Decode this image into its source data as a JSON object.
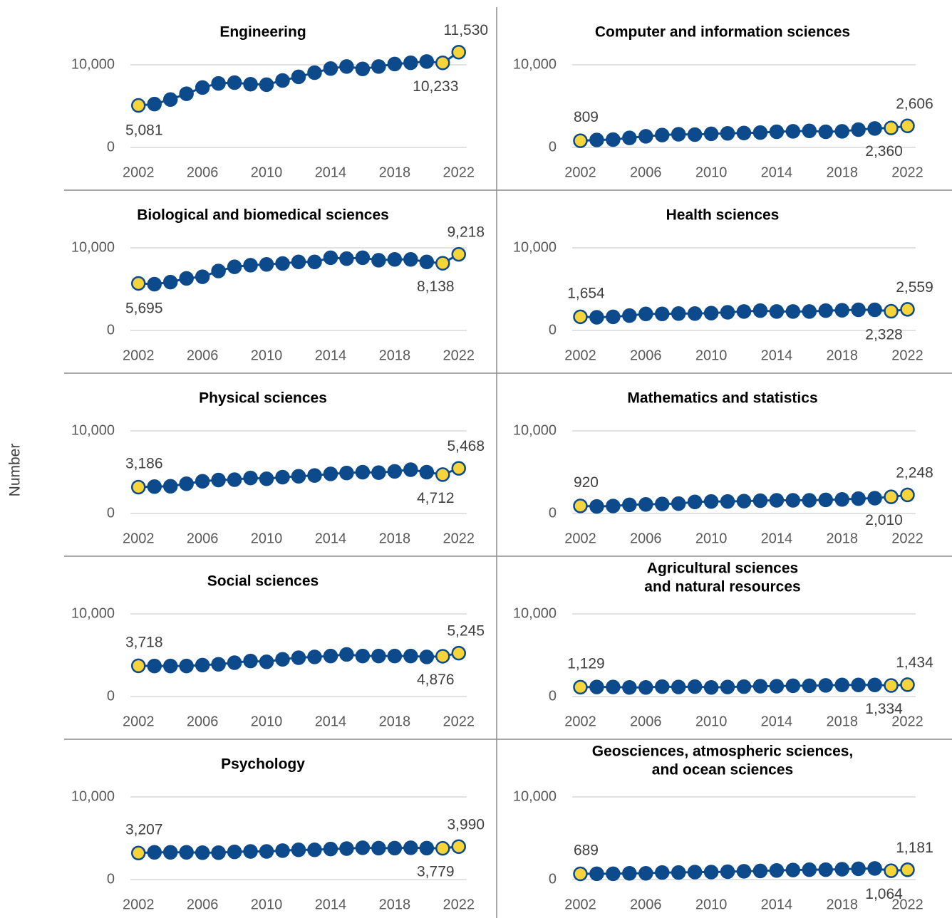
{
  "ylabel": "Number",
  "chart_data": [
    {
      "type": "line",
      "title": [
        "Engineering"
      ],
      "x": [
        2002,
        2003,
        2004,
        2005,
        2006,
        2007,
        2008,
        2009,
        2010,
        2011,
        2012,
        2013,
        2014,
        2015,
        2016,
        2017,
        2018,
        2019,
        2020,
        2021,
        2022
      ],
      "xlim": [
        2001.5,
        2022.5
      ],
      "xticks": [
        2002,
        2006,
        2010,
        2014,
        2018,
        2022
      ],
      "ylim": [
        0,
        12000
      ],
      "yticks": [
        0,
        {
          "value": 10000,
          "label": "10,000"
        }
      ],
      "grid": true,
      "highlight_color": "#f7d43a",
      "series": [
        {
          "color": "#0c4a8c",
          "values": [
            5081,
            5250,
            5800,
            6500,
            7250,
            7750,
            7850,
            7650,
            7600,
            8100,
            8550,
            9050,
            9550,
            9800,
            9500,
            9800,
            10100,
            10250,
            10400,
            10233,
            11530
          ],
          "value_labels": [
            "5,081",
            null,
            null,
            null,
            null,
            null,
            null,
            null,
            null,
            null,
            null,
            null,
            null,
            null,
            null,
            null,
            null,
            null,
            null,
            "10,233",
            "11,530"
          ]
        }
      ]
    },
    {
      "type": "line",
      "title": [
        "Computer and information sciences"
      ],
      "x": [
        2002,
        2003,
        2004,
        2005,
        2006,
        2007,
        2008,
        2009,
        2010,
        2011,
        2012,
        2013,
        2014,
        2015,
        2016,
        2017,
        2018,
        2019,
        2020,
        2021,
        2022
      ],
      "xlim": [
        2001.5,
        2022.5
      ],
      "xticks": [
        2002,
        2006,
        2010,
        2014,
        2018,
        2022
      ],
      "ylim": [
        0,
        12000
      ],
      "yticks": [
        0,
        {
          "value": 10000,
          "label": "10,000"
        }
      ],
      "grid": true,
      "highlight_color": "#f7d43a",
      "series": [
        {
          "color": "#0c4a8c",
          "values": [
            809,
            900,
            950,
            1150,
            1350,
            1500,
            1600,
            1550,
            1650,
            1700,
            1750,
            1800,
            1900,
            1950,
            2000,
            1900,
            1950,
            2150,
            2300,
            2360,
            2606
          ],
          "value_labels": [
            "809",
            null,
            null,
            null,
            null,
            null,
            null,
            null,
            null,
            null,
            null,
            null,
            null,
            null,
            null,
            null,
            null,
            null,
            null,
            "2,360",
            "2,606"
          ]
        }
      ]
    },
    {
      "type": "line",
      "title": [
        "Biological and biomedical sciences"
      ],
      "x": [
        2002,
        2003,
        2004,
        2005,
        2006,
        2007,
        2008,
        2009,
        2010,
        2011,
        2012,
        2013,
        2014,
        2015,
        2016,
        2017,
        2018,
        2019,
        2020,
        2021,
        2022
      ],
      "xlim": [
        2001.5,
        2022.5
      ],
      "xticks": [
        2002,
        2006,
        2010,
        2014,
        2018,
        2022
      ],
      "ylim": [
        0,
        12000
      ],
      "yticks": [
        0,
        {
          "value": 10000,
          "label": "10,000"
        }
      ],
      "grid": true,
      "highlight_color": "#f7d43a",
      "series": [
        {
          "color": "#0c4a8c",
          "values": [
            5695,
            5600,
            5850,
            6300,
            6500,
            7200,
            7700,
            7900,
            8000,
            8100,
            8300,
            8300,
            8800,
            8700,
            8800,
            8500,
            8600,
            8600,
            8300,
            8138,
            9218
          ],
          "value_labels": [
            "5,695",
            null,
            null,
            null,
            null,
            null,
            null,
            null,
            null,
            null,
            null,
            null,
            null,
            null,
            null,
            null,
            null,
            null,
            null,
            "8,138",
            "9,218"
          ]
        }
      ]
    },
    {
      "type": "line",
      "title": [
        "Health sciences"
      ],
      "x": [
        2002,
        2003,
        2004,
        2005,
        2006,
        2007,
        2008,
        2009,
        2010,
        2011,
        2012,
        2013,
        2014,
        2015,
        2016,
        2017,
        2018,
        2019,
        2020,
        2021,
        2022
      ],
      "xlim": [
        2001.5,
        2022.5
      ],
      "xticks": [
        2002,
        2006,
        2010,
        2014,
        2018,
        2022
      ],
      "ylim": [
        0,
        12000
      ],
      "yticks": [
        0,
        {
          "value": 10000,
          "label": "10,000"
        }
      ],
      "grid": true,
      "highlight_color": "#f7d43a",
      "series": [
        {
          "color": "#0c4a8c",
          "values": [
            1654,
            1600,
            1650,
            1800,
            2000,
            2000,
            2050,
            2050,
            2100,
            2200,
            2300,
            2400,
            2300,
            2300,
            2300,
            2400,
            2450,
            2500,
            2500,
            2328,
            2559
          ],
          "value_labels": [
            "1,654",
            null,
            null,
            null,
            null,
            null,
            null,
            null,
            null,
            null,
            null,
            null,
            null,
            null,
            null,
            null,
            null,
            null,
            null,
            "2,328",
            "2,559"
          ]
        }
      ]
    },
    {
      "type": "line",
      "title": [
        "Physical sciences"
      ],
      "x": [
        2002,
        2003,
        2004,
        2005,
        2006,
        2007,
        2008,
        2009,
        2010,
        2011,
        2012,
        2013,
        2014,
        2015,
        2016,
        2017,
        2018,
        2019,
        2020,
        2021,
        2022
      ],
      "xlim": [
        2001.5,
        2022.5
      ],
      "xticks": [
        2002,
        2006,
        2010,
        2014,
        2018,
        2022
      ],
      "ylim": [
        0,
        12000
      ],
      "yticks": [
        0,
        {
          "value": 10000,
          "label": "10,000"
        }
      ],
      "grid": true,
      "highlight_color": "#f7d43a",
      "series": [
        {
          "color": "#0c4a8c",
          "values": [
            3186,
            3250,
            3300,
            3600,
            3900,
            4050,
            4100,
            4300,
            4200,
            4400,
            4500,
            4600,
            4800,
            4900,
            5000,
            4950,
            5100,
            5300,
            5000,
            4712,
            5468
          ],
          "value_labels": [
            "3,186",
            null,
            null,
            null,
            null,
            null,
            null,
            null,
            null,
            null,
            null,
            null,
            null,
            null,
            null,
            null,
            null,
            null,
            null,
            "4,712",
            "5,468"
          ]
        }
      ]
    },
    {
      "type": "line",
      "title": [
        "Mathematics and statistics"
      ],
      "x": [
        2002,
        2003,
        2004,
        2005,
        2006,
        2007,
        2008,
        2009,
        2010,
        2011,
        2012,
        2013,
        2014,
        2015,
        2016,
        2017,
        2018,
        2019,
        2020,
        2021,
        2022
      ],
      "xlim": [
        2001.5,
        2022.5
      ],
      "xticks": [
        2002,
        2006,
        2010,
        2014,
        2018,
        2022
      ],
      "ylim": [
        0,
        12000
      ],
      "yticks": [
        0,
        {
          "value": 10000,
          "label": "10,000"
        }
      ],
      "grid": true,
      "highlight_color": "#f7d43a",
      "series": [
        {
          "color": "#0c4a8c",
          "values": [
            920,
            850,
            900,
            1050,
            1100,
            1150,
            1200,
            1400,
            1450,
            1450,
            1500,
            1550,
            1600,
            1600,
            1600,
            1650,
            1700,
            1800,
            1850,
            2010,
            2248
          ],
          "value_labels": [
            "920",
            null,
            null,
            null,
            null,
            null,
            null,
            null,
            null,
            null,
            null,
            null,
            null,
            null,
            null,
            null,
            null,
            null,
            null,
            "2,010",
            "2,248"
          ]
        }
      ]
    },
    {
      "type": "line",
      "title": [
        "Social sciences"
      ],
      "x": [
        2002,
        2003,
        2004,
        2005,
        2006,
        2007,
        2008,
        2009,
        2010,
        2011,
        2012,
        2013,
        2014,
        2015,
        2016,
        2017,
        2018,
        2019,
        2020,
        2021,
        2022
      ],
      "xlim": [
        2001.5,
        2022.5
      ],
      "xticks": [
        2002,
        2006,
        2010,
        2014,
        2018,
        2022
      ],
      "ylim": [
        0,
        12000
      ],
      "yticks": [
        0,
        {
          "value": 10000,
          "label": "10,000"
        }
      ],
      "grid": true,
      "highlight_color": "#f7d43a",
      "series": [
        {
          "color": "#0c4a8c",
          "values": [
            3718,
            3700,
            3700,
            3700,
            3800,
            3900,
            4100,
            4300,
            4200,
            4500,
            4700,
            4800,
            4900,
            5100,
            4900,
            4900,
            4900,
            4900,
            4800,
            4876,
            5245
          ],
          "value_labels": [
            "3,718",
            null,
            null,
            null,
            null,
            null,
            null,
            null,
            null,
            null,
            null,
            null,
            null,
            null,
            null,
            null,
            null,
            null,
            null,
            "4,876",
            "5,245"
          ]
        }
      ]
    },
    {
      "type": "line",
      "title": [
        "Agricultural sciences",
        "and natural resources"
      ],
      "x": [
        2002,
        2003,
        2004,
        2005,
        2006,
        2007,
        2008,
        2009,
        2010,
        2011,
        2012,
        2013,
        2014,
        2015,
        2016,
        2017,
        2018,
        2019,
        2020,
        2021,
        2022
      ],
      "xlim": [
        2001.5,
        2022.5
      ],
      "xticks": [
        2002,
        2006,
        2010,
        2014,
        2018,
        2022
      ],
      "ylim": [
        0,
        12000
      ],
      "yticks": [
        0,
        {
          "value": 10000,
          "label": "10,000"
        }
      ],
      "grid": true,
      "highlight_color": "#f7d43a",
      "series": [
        {
          "color": "#0c4a8c",
          "values": [
            1129,
            1150,
            1150,
            1100,
            1100,
            1200,
            1150,
            1200,
            1100,
            1150,
            1200,
            1250,
            1250,
            1300,
            1300,
            1350,
            1400,
            1400,
            1400,
            1334,
            1434
          ],
          "value_labels": [
            "1,129",
            null,
            null,
            null,
            null,
            null,
            null,
            null,
            null,
            null,
            null,
            null,
            null,
            null,
            null,
            null,
            null,
            null,
            null,
            "1,334",
            "1,434"
          ]
        }
      ]
    },
    {
      "type": "line",
      "title": [
        "Psychology"
      ],
      "x": [
        2002,
        2003,
        2004,
        2005,
        2006,
        2007,
        2008,
        2009,
        2010,
        2011,
        2012,
        2013,
        2014,
        2015,
        2016,
        2017,
        2018,
        2019,
        2020,
        2021,
        2022
      ],
      "xlim": [
        2001.5,
        2022.5
      ],
      "xticks": [
        2002,
        2006,
        2010,
        2014,
        2018,
        2022
      ],
      "ylim": [
        0,
        12000
      ],
      "yticks": [
        0,
        {
          "value": 10000,
          "label": "10,000"
        }
      ],
      "grid": true,
      "highlight_color": "#f7d43a",
      "series": [
        {
          "color": "#0c4a8c",
          "values": [
            3207,
            3300,
            3300,
            3300,
            3250,
            3250,
            3350,
            3400,
            3400,
            3500,
            3600,
            3600,
            3700,
            3750,
            3850,
            3800,
            3800,
            3850,
            3800,
            3779,
            3990
          ],
          "value_labels": [
            "3,207",
            null,
            null,
            null,
            null,
            null,
            null,
            null,
            null,
            null,
            null,
            null,
            null,
            null,
            null,
            null,
            null,
            null,
            null,
            "3,779",
            "3,990"
          ]
        }
      ]
    },
    {
      "type": "line",
      "title": [
        "Geosciences, atmospheric sciences,",
        "and ocean sciences"
      ],
      "x": [
        2002,
        2003,
        2004,
        2005,
        2006,
        2007,
        2008,
        2009,
        2010,
        2011,
        2012,
        2013,
        2014,
        2015,
        2016,
        2017,
        2018,
        2019,
        2020,
        2021,
        2022
      ],
      "xlim": [
        2001.5,
        2022.5
      ],
      "xticks": [
        2002,
        2006,
        2010,
        2014,
        2018,
        2022
      ],
      "ylim": [
        0,
        12000
      ],
      "yticks": [
        0,
        {
          "value": 10000,
          "label": "10,000"
        }
      ],
      "grid": true,
      "highlight_color": "#f7d43a",
      "series": [
        {
          "color": "#0c4a8c",
          "values": [
            689,
            700,
            700,
            750,
            750,
            850,
            850,
            900,
            900,
            950,
            1000,
            1050,
            1100,
            1150,
            1200,
            1200,
            1250,
            1300,
            1350,
            1064,
            1181
          ],
          "value_labels": [
            "689",
            null,
            null,
            null,
            null,
            null,
            null,
            null,
            null,
            null,
            null,
            null,
            null,
            null,
            null,
            null,
            null,
            null,
            null,
            "1,064",
            "1,181"
          ]
        }
      ]
    }
  ]
}
